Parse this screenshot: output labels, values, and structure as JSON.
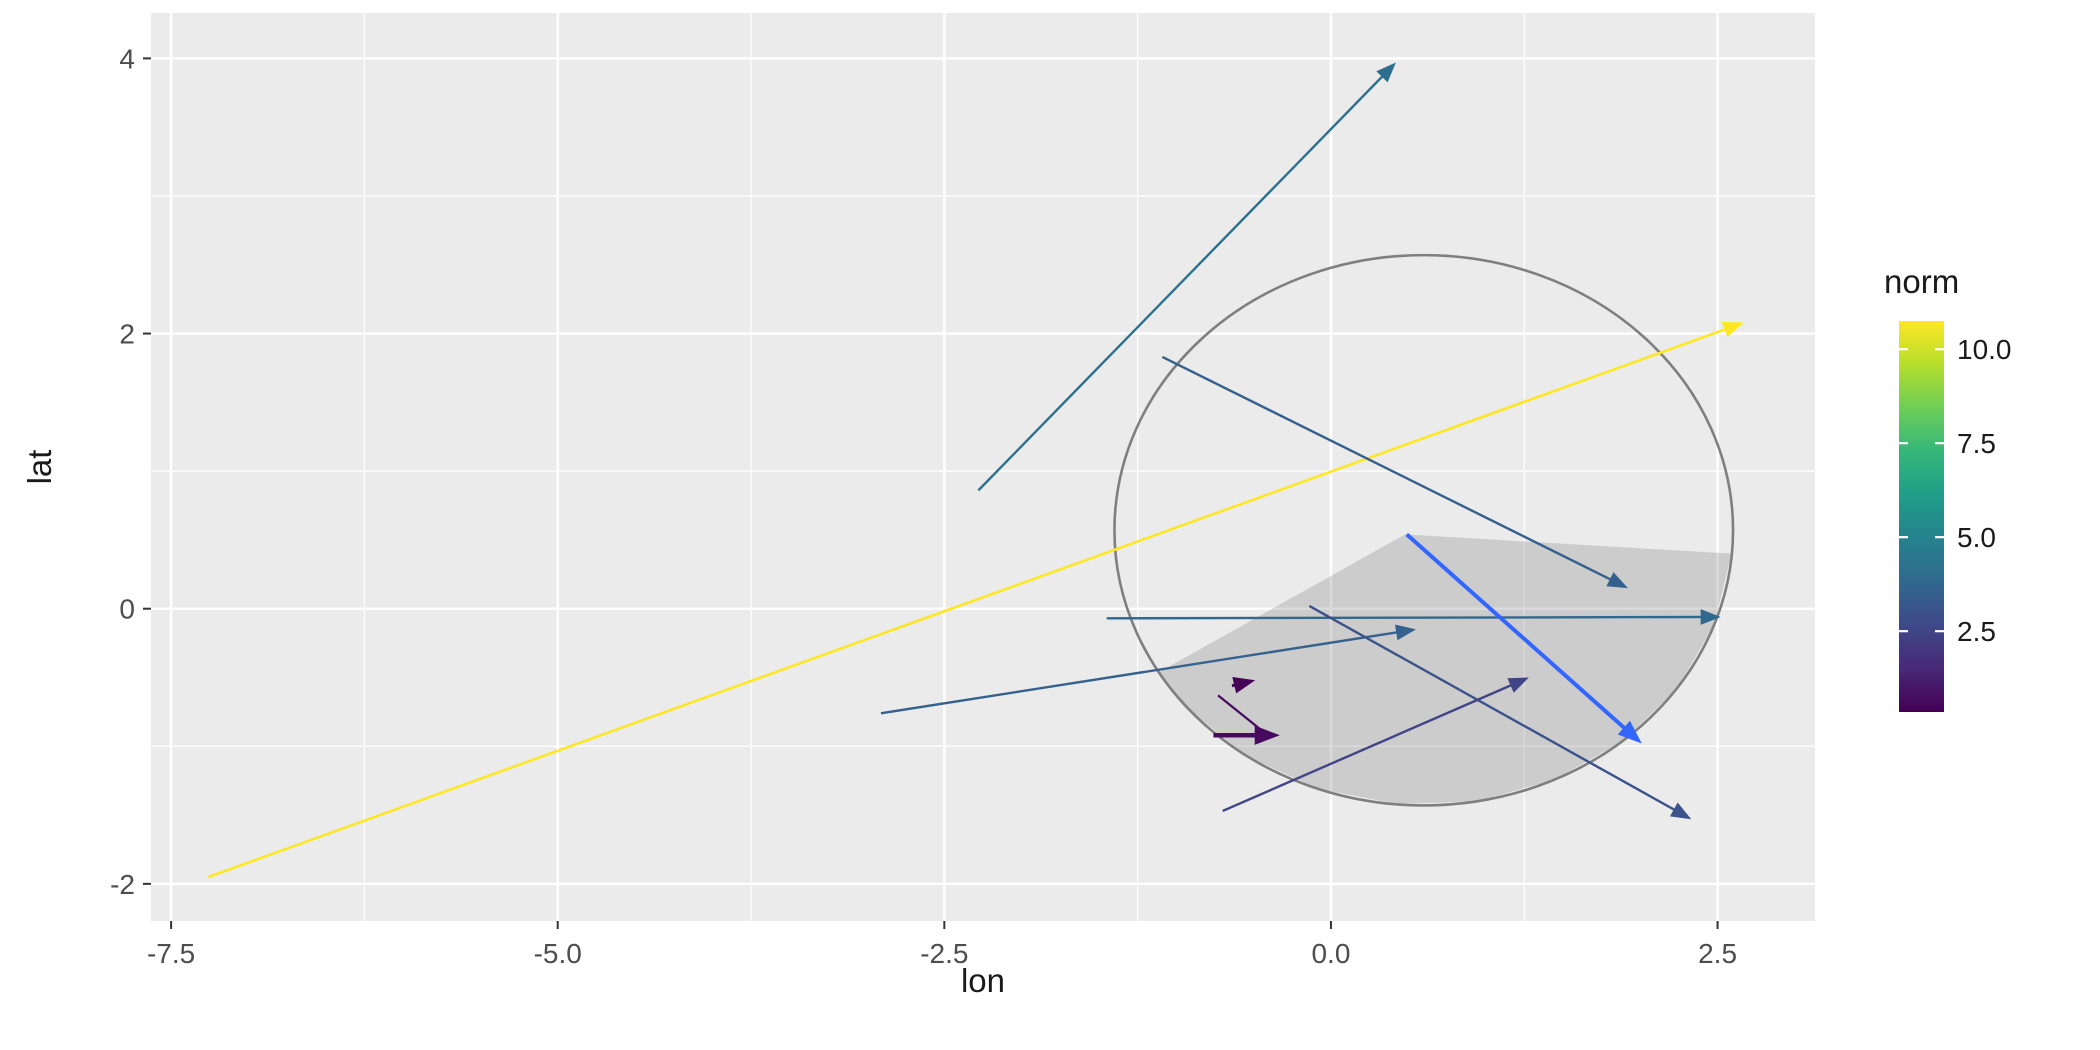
{
  "chart_data": {
    "type": "scatter",
    "subtype": "arrow-segments (ggplot2 geom_segment with arrows, viridis colour scale)",
    "title": "",
    "xlabel": "lon",
    "ylabel": "lat",
    "xlim": [
      -7.63,
      3.13
    ],
    "ylim": [
      -2.27,
      4.33
    ],
    "grid": true,
    "x_major_ticks": [
      -7.5,
      -5.0,
      -2.5,
      0.0,
      2.5
    ],
    "x_tick_labels": [
      "-7.5",
      "-5.0",
      "-2.5",
      "0.0",
      "2.5"
    ],
    "x_minor_ticks": [
      -6.25,
      -3.75,
      -1.25,
      1.25
    ],
    "y_major_ticks": [
      -2,
      0,
      2,
      4
    ],
    "y_tick_labels": [
      "-2",
      "0",
      "2",
      "4"
    ],
    "y_minor_ticks": [
      -1,
      1,
      3
    ],
    "legend": {
      "title": "norm",
      "position": "right",
      "colormap": "viridis",
      "range": [
        0.35,
        10.75
      ],
      "ticks": [
        10.0,
        7.5,
        5.0,
        2.5
      ],
      "labels": [
        "10.0",
        "7.5",
        "5.0",
        "2.5"
      ],
      "gradient": [
        "#440154",
        "#482878",
        "#3e4989",
        "#31688e",
        "#26828e",
        "#1f9e89",
        "#35b779",
        "#6ece58",
        "#b5de2b",
        "#fde725"
      ]
    },
    "circle": {
      "cx": 0.6,
      "cy": 0.57,
      "r": 2.0,
      "color": "#7f7f7f"
    },
    "polygon": {
      "points": [
        [
          -1.11,
          -0.46
        ],
        [
          0.48,
          0.54
        ],
        [
          2.59,
          0.4
        ],
        [
          2.48,
          -0.11
        ],
        [
          2.24,
          -0.58
        ],
        [
          1.89,
          -0.96
        ],
        [
          1.45,
          -1.24
        ],
        [
          0.95,
          -1.4
        ],
        [
          0.43,
          -1.42
        ],
        [
          -0.08,
          -1.31
        ],
        [
          -0.55,
          -1.07
        ],
        [
          -0.93,
          -0.72
        ]
      ],
      "fill": "#7f7f7f",
      "opacity": 0.28
    },
    "segments": [
      {
        "x1": -2.28,
        "y1": 0.86,
        "x2": 0.42,
        "y2": 3.97,
        "norm": 4.1,
        "color": "#2d708e",
        "width": 2.4,
        "arrow": true
      },
      {
        "x1": -7.26,
        "y1": -1.95,
        "x2": 2.67,
        "y2": 2.08,
        "norm": 10.7,
        "color": "#fde725",
        "width": 2.6,
        "arrow": true
      },
      {
        "x1": -1.09,
        "y1": 1.83,
        "x2": 1.92,
        "y2": 0.15,
        "norm": 3.4,
        "color": "#355f8d",
        "width": 2.4,
        "arrow": true
      },
      {
        "x1": -1.45,
        "y1": -0.07,
        "x2": 2.52,
        "y2": -0.06,
        "norm": 4.0,
        "color": "#31688e",
        "width": 2.4,
        "arrow": true
      },
      {
        "x1": -2.91,
        "y1": -0.76,
        "x2": 0.55,
        "y2": -0.15,
        "norm": 3.5,
        "color": "#34618d",
        "width": 2.4,
        "arrow": true
      },
      {
        "x1": 0.49,
        "y1": 0.54,
        "x2": 2.01,
        "y2": -0.98,
        "norm": 2.1,
        "color": "#3366ff",
        "width": 4.0,
        "arrow": true
      },
      {
        "x1": -0.14,
        "y1": 0.02,
        "x2": 2.33,
        "y2": -1.53,
        "norm": 2.9,
        "color": "#3b528b",
        "width": 2.4,
        "arrow": true
      },
      {
        "x1": -0.7,
        "y1": -1.47,
        "x2": 1.28,
        "y2": -0.5,
        "norm": 2.2,
        "color": "#414487",
        "width": 2.4,
        "arrow": true
      },
      {
        "x1": -0.76,
        "y1": -0.92,
        "x2": -0.33,
        "y2": -0.92,
        "norm": 0.4,
        "color": "#460b5e",
        "width": 4.5,
        "arrow": true
      },
      {
        "x1": -0.73,
        "y1": -0.63,
        "x2": -0.42,
        "y2": -0.91,
        "norm": 0.4,
        "color": "#460b5e",
        "width": 2.2,
        "arrow": false
      },
      {
        "x1": -0.64,
        "y1": -0.56,
        "x2": -0.49,
        "y2": -0.52,
        "norm": 0.2,
        "color": "#440357",
        "width": 3.0,
        "arrow": true
      }
    ]
  },
  "style": {
    "background": "#ffffff",
    "panel_bg": "#ebebeb",
    "grid_color": "#ffffff",
    "axis_text_color": "#4d4d4d",
    "axis_title_color": "#1a1a1a",
    "tick_mark_color": "#333333",
    "legend_label_color": "#1a1a1a",
    "colorbar_tick_color": "#ffffff"
  }
}
